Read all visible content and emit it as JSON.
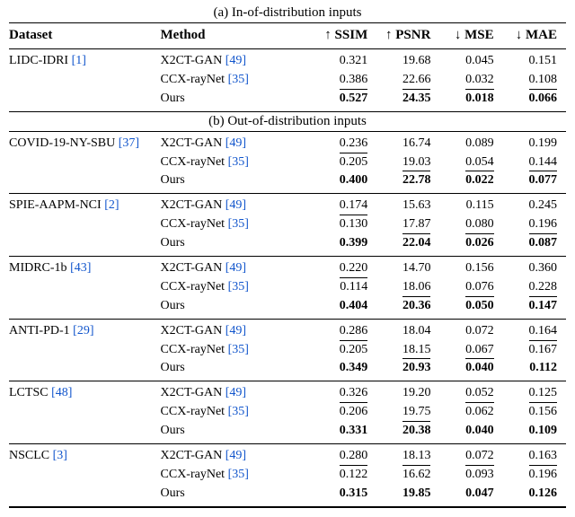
{
  "caption_a": "(a) In-of-distribution inputs",
  "caption_b": "(b) Out-of-distribution inputs",
  "headers": {
    "dataset": "Dataset",
    "method": "Method",
    "ssim_arrow": "↑",
    "ssim": "SSIM",
    "psnr_arrow": "↑",
    "psnr": "PSNR",
    "mse_arrow": "↓",
    "mse": "MSE",
    "mae_arrow": "↓",
    "mae": "MAE"
  },
  "methods": {
    "x2ct": {
      "name": "X2CT-GAN ",
      "cite": "[49]"
    },
    "ccx": {
      "name": "CCX-rayNet ",
      "cite": "[35]"
    },
    "ours": {
      "name": "Ours",
      "cite": ""
    }
  },
  "section_a": [
    {
      "dataset": {
        "name": "LIDC-IDRI ",
        "cite": "[1]"
      },
      "rows": [
        {
          "m": "x2ct",
          "ssim": "0.321",
          "psnr": "19.68",
          "mse": "0.045",
          "mae": "0.151",
          "style": {}
        },
        {
          "m": "ccx",
          "ssim": "0.386",
          "psnr": "22.66",
          "mse": "0.032",
          "mae": "0.108",
          "style": {
            "ssim": "u",
            "psnr": "u",
            "mse": "u",
            "mae": "u"
          }
        },
        {
          "m": "ours",
          "ssim": "0.527",
          "psnr": "24.35",
          "mse": "0.018",
          "mae": "0.066",
          "style": {
            "ssim": "b",
            "psnr": "b",
            "mse": "b",
            "mae": "b"
          }
        }
      ]
    }
  ],
  "section_b": [
    {
      "dataset": {
        "name": "COVID-19-NY-SBU ",
        "cite": "[37]"
      },
      "rows": [
        {
          "m": "x2ct",
          "ssim": "0.236",
          "psnr": "16.74",
          "mse": "0.089",
          "mae": "0.199",
          "style": {
            "ssim": "u"
          }
        },
        {
          "m": "ccx",
          "ssim": "0.205",
          "psnr": "19.03",
          "mse": "0.054",
          "mae": "0.144",
          "style": {
            "psnr": "u",
            "mse": "u",
            "mae": "u"
          }
        },
        {
          "m": "ours",
          "ssim": "0.400",
          "psnr": "22.78",
          "mse": "0.022",
          "mae": "0.077",
          "style": {
            "ssim": "b",
            "psnr": "b",
            "mse": "b",
            "mae": "b"
          }
        }
      ]
    },
    {
      "dataset": {
        "name": "SPIE-AAPM-NCI ",
        "cite": "[2]"
      },
      "rows": [
        {
          "m": "x2ct",
          "ssim": "0.174",
          "psnr": "15.63",
          "mse": "0.115",
          "mae": "0.245",
          "style": {
            "ssim": "u"
          }
        },
        {
          "m": "ccx",
          "ssim": "0.130",
          "psnr": "17.87",
          "mse": "0.080",
          "mae": "0.196",
          "style": {
            "psnr": "u",
            "mse": "u",
            "mae": "u"
          }
        },
        {
          "m": "ours",
          "ssim": "0.399",
          "psnr": "22.04",
          "mse": "0.026",
          "mae": "0.087",
          "style": {
            "ssim": "b",
            "psnr": "b",
            "mse": "b",
            "mae": "b"
          }
        }
      ]
    },
    {
      "dataset": {
        "name": "MIDRC-1b ",
        "cite": "[43]"
      },
      "rows": [
        {
          "m": "x2ct",
          "ssim": "0.220",
          "psnr": "14.70",
          "mse": "0.156",
          "mae": "0.360",
          "style": {
            "ssim": "u"
          }
        },
        {
          "m": "ccx",
          "ssim": "0.114",
          "psnr": "18.06",
          "mse": "0.076",
          "mae": "0.228",
          "style": {
            "psnr": "u",
            "mse": "u",
            "mae": "u"
          }
        },
        {
          "m": "ours",
          "ssim": "0.404",
          "psnr": "20.36",
          "mse": "0.050",
          "mae": "0.147",
          "style": {
            "ssim": "b",
            "psnr": "b",
            "mse": "b",
            "mae": "b"
          }
        }
      ]
    },
    {
      "dataset": {
        "name": "ANTI-PD-1 ",
        "cite": "[29]"
      },
      "rows": [
        {
          "m": "x2ct",
          "ssim": "0.286",
          "psnr": "18.04",
          "mse": "0.072",
          "mae": "0.164",
          "style": {
            "ssim": "u",
            "mae": "u"
          }
        },
        {
          "m": "ccx",
          "ssim": "0.205",
          "psnr": "18.15",
          "mse": "0.067",
          "mae": "0.167",
          "style": {
            "psnr": "u",
            "mse": "u"
          }
        },
        {
          "m": "ours",
          "ssim": "0.349",
          "psnr": "20.93",
          "mse": "0.040",
          "mae": "0.112",
          "style": {
            "ssim": "b",
            "psnr": "b",
            "mse": "b",
            "mae": "b"
          }
        }
      ]
    },
    {
      "dataset": {
        "name": "LCTSC ",
        "cite": "[48]"
      },
      "rows": [
        {
          "m": "x2ct",
          "ssim": "0.326",
          "psnr": "19.20",
          "mse": "0.052",
          "mae": "0.125",
          "style": {
            "ssim": "u",
            "mse": "u",
            "mae": "u"
          }
        },
        {
          "m": "ccx",
          "ssim": "0.206",
          "psnr": "19.75",
          "mse": "0.062",
          "mae": "0.156",
          "style": {
            "psnr": "u"
          }
        },
        {
          "m": "ours",
          "ssim": "0.331",
          "psnr": "20.38",
          "mse": "0.040",
          "mae": "0.109",
          "style": {
            "ssim": "b",
            "psnr": "b",
            "mse": "b",
            "mae": "b"
          }
        }
      ]
    },
    {
      "dataset": {
        "name": "NSCLC ",
        "cite": "[3]"
      },
      "rows": [
        {
          "m": "x2ct",
          "ssim": "0.280",
          "psnr": "18.13",
          "mse": "0.072",
          "mae": "0.163",
          "style": {
            "ssim": "u",
            "psnr": "u",
            "mse": "u",
            "mae": "u"
          }
        },
        {
          "m": "ccx",
          "ssim": "0.122",
          "psnr": "16.62",
          "mse": "0.093",
          "mae": "0.196",
          "style": {}
        },
        {
          "m": "ours",
          "ssim": "0.315",
          "psnr": "19.85",
          "mse": "0.047",
          "mae": "0.126",
          "style": {
            "ssim": "b",
            "psnr": "b",
            "mse": "b",
            "mae": "b"
          }
        }
      ]
    }
  ],
  "colors": {
    "cite": "#1155cc",
    "text": "#000000",
    "bg": "#ffffff"
  }
}
